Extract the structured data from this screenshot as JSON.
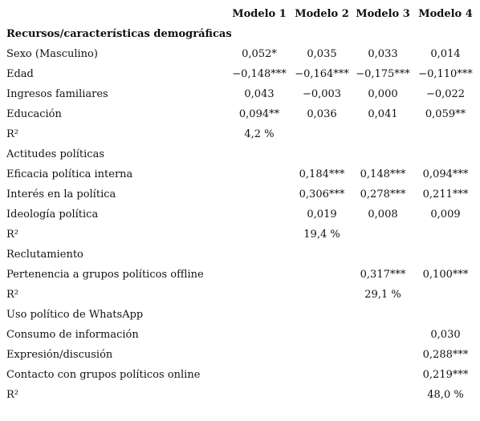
{
  "table": {
    "columns": [
      "Modelo 1",
      "Modelo 2",
      "Modelo 3",
      "Modelo 4"
    ],
    "rows": [
      {
        "label": "Recursos/características demográficas",
        "heading": true,
        "bold": true
      },
      {
        "label": "Sexo (Masculino)",
        "cells": [
          "0,052*",
          "0,035",
          "0,033",
          "0,014"
        ]
      },
      {
        "label": "Edad",
        "cells": [
          "−0,148***",
          "−0,164***",
          "−0,175***",
          "−0,110***"
        ]
      },
      {
        "label": "Ingresos familiares",
        "cells": [
          "0,043",
          "−0,003",
          "0,000",
          "−0,022"
        ]
      },
      {
        "label": "Educación",
        "cells": [
          "0,094**",
          "0,036",
          "0,041",
          "0,059**"
        ]
      },
      {
        "label": "R²",
        "cells": [
          "4,2 %",
          null,
          null,
          null
        ]
      },
      {
        "label": "Actitudes políticas",
        "heading": true
      },
      {
        "label": "Eficacia política interna",
        "cells": [
          null,
          "0,184***",
          "0,148***",
          "0,094***"
        ]
      },
      {
        "label": "Interés en la política",
        "cells": [
          null,
          "0,306***",
          "0,278***",
          "0,211***"
        ]
      },
      {
        "label": "Ideología política",
        "cells": [
          null,
          "0,019",
          "0,008",
          "0,009"
        ]
      },
      {
        "label": "R²",
        "cells": [
          null,
          "19,4 %",
          null,
          null
        ]
      },
      {
        "label": "Reclutamiento",
        "heading": true
      },
      {
        "label": "Pertenencia a grupos políticos offline",
        "cells": [
          null,
          null,
          "0,317***",
          "0,100***"
        ]
      },
      {
        "label": "R²",
        "cells": [
          null,
          null,
          "29,1 %",
          null
        ]
      },
      {
        "label": "Uso político de WhatsApp",
        "heading": true
      },
      {
        "label": "Consumo de información",
        "cells": [
          null,
          null,
          null,
          "0,030"
        ]
      },
      {
        "label": "Expresión/discusión",
        "cells": [
          null,
          null,
          null,
          "0,288***"
        ]
      },
      {
        "label": "Contacto con grupos políticos online",
        "cells": [
          null,
          null,
          null,
          "0,219***"
        ]
      },
      {
        "label": "R²",
        "cells": [
          null,
          null,
          null,
          "48,0 %"
        ]
      }
    ]
  }
}
